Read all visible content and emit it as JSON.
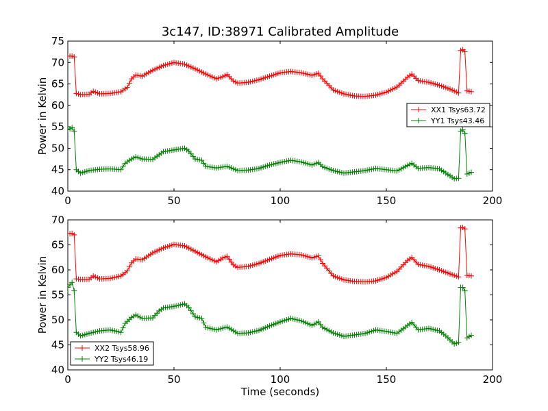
{
  "title": "3c147, ID:38971 Calibrated Amplitude",
  "xlabel": "Time (seconds)",
  "chart_data": [
    {
      "type": "line",
      "title": "3c147, ID:38971 Calibrated Amplitude",
      "xlabel": "",
      "ylabel": "Power in Kelvin",
      "xlim": [
        0,
        200
      ],
      "ylim": [
        40,
        75
      ],
      "xticks": [
        "0",
        "50",
        "100",
        "150",
        "200"
      ],
      "yticks": [
        "40",
        "45",
        "50",
        "55",
        "60",
        "65",
        "70",
        "75"
      ],
      "grid": false,
      "legend_position": "right",
      "marker": "+",
      "series": [
        {
          "name": "XX1 Tsys63.72",
          "color": "#ff0000",
          "x": [
            0,
            2,
            3,
            4,
            6,
            10,
            12,
            15,
            20,
            25,
            28,
            30,
            32,
            35,
            40,
            45,
            50,
            55,
            60,
            65,
            70,
            73,
            75,
            78,
            80,
            85,
            90,
            95,
            100,
            105,
            110,
            115,
            118,
            120,
            125,
            130,
            135,
            140,
            145,
            150,
            155,
            160,
            162,
            165,
            170,
            175,
            180,
            184,
            185,
            186,
            187,
            188,
            190
          ],
          "values": [
            71.5,
            71.5,
            71.3,
            62.8,
            62.5,
            62.6,
            63.3,
            62.7,
            62.8,
            63.2,
            64.2,
            66.2,
            67.1,
            66.8,
            68.2,
            69.3,
            70.0,
            69.6,
            68.5,
            67.3,
            66.2,
            66.7,
            67.2,
            65.7,
            65.2,
            65.4,
            66.0,
            66.8,
            67.6,
            67.9,
            67.6,
            67.0,
            67.5,
            66.2,
            63.6,
            62.7,
            62.2,
            62.1,
            62.4,
            63.1,
            64.3,
            66.6,
            67.3,
            65.8,
            65.4,
            64.7,
            63.8,
            62.9,
            72.8,
            73.0,
            72.5,
            63.4,
            63.2
          ]
        },
        {
          "name": "YY1 Tsys43.46",
          "color": "#008000",
          "x": [
            0,
            2,
            3,
            4,
            6,
            10,
            15,
            20,
            25,
            27,
            30,
            32,
            35,
            40,
            43,
            45,
            50,
            55,
            57,
            60,
            63,
            65,
            70,
            75,
            80,
            85,
            90,
            95,
            100,
            105,
            110,
            115,
            118,
            120,
            125,
            130,
            135,
            140,
            145,
            150,
            155,
            160,
            162,
            165,
            170,
            175,
            178,
            182,
            184,
            185,
            186,
            187,
            188,
            190
          ],
          "values": [
            54.3,
            54.8,
            54.0,
            45.0,
            44.2,
            44.8,
            45.1,
            45.2,
            45.0,
            46.5,
            47.5,
            48.0,
            47.5,
            47.4,
            48.5,
            49.2,
            49.6,
            50.0,
            49.3,
            47.5,
            47.2,
            45.8,
            45.4,
            45.8,
            44.8,
            44.9,
            45.3,
            46.1,
            46.7,
            47.2,
            46.8,
            46.1,
            46.7,
            45.7,
            44.8,
            44.2,
            44.5,
            44.8,
            45.3,
            45.0,
            44.7,
            46.0,
            46.5,
            45.3,
            45.5,
            45.2,
            44.2,
            42.9,
            43.0,
            54.0,
            54.3,
            53.5,
            44.0,
            44.4
          ]
        }
      ]
    },
    {
      "type": "line",
      "title": "",
      "xlabel": "Time (seconds)",
      "ylabel": "Power in Kelvin",
      "xlim": [
        0,
        200
      ],
      "ylim": [
        40,
        70
      ],
      "xticks": [
        "0",
        "50",
        "100",
        "150",
        "200"
      ],
      "yticks": [
        "40",
        "45",
        "50",
        "55",
        "60",
        "65",
        "70"
      ],
      "grid": false,
      "legend_position": "lower left",
      "marker": "+",
      "series": [
        {
          "name": "XX2 Tsys58.96",
          "color": "#ff0000",
          "x": [
            0,
            2,
            3,
            4,
            6,
            10,
            12,
            15,
            20,
            25,
            28,
            30,
            32,
            35,
            40,
            45,
            50,
            55,
            60,
            65,
            70,
            73,
            75,
            78,
            80,
            85,
            90,
            95,
            100,
            105,
            110,
            115,
            118,
            120,
            125,
            130,
            135,
            140,
            145,
            150,
            155,
            160,
            162,
            165,
            170,
            175,
            180,
            184,
            185,
            186,
            187,
            188,
            190
          ],
          "values": [
            67.2,
            67.3,
            67.0,
            58.2,
            58.1,
            58.1,
            58.8,
            58.2,
            58.3,
            58.8,
            59.8,
            61.4,
            62.2,
            62.0,
            63.4,
            64.4,
            65.1,
            64.8,
            63.7,
            62.6,
            61.6,
            62.4,
            62.7,
            61.0,
            60.5,
            60.7,
            61.3,
            62.1,
            62.9,
            63.2,
            63.0,
            62.4,
            62.8,
            61.3,
            58.8,
            58.0,
            57.7,
            57.6,
            57.8,
            58.5,
            59.7,
            61.9,
            62.5,
            61.1,
            60.7,
            60.0,
            59.2,
            58.6,
            68.4,
            68.5,
            68.2,
            58.9,
            58.8
          ]
        },
        {
          "name": "YY2 Tsys46.19",
          "color": "#008000",
          "x": [
            0,
            2,
            3,
            4,
            6,
            10,
            15,
            20,
            25,
            27,
            30,
            32,
            35,
            40,
            43,
            45,
            50,
            55,
            57,
            60,
            63,
            65,
            70,
            75,
            80,
            85,
            90,
            95,
            100,
            105,
            110,
            115,
            118,
            120,
            125,
            130,
            135,
            140,
            145,
            150,
            155,
            160,
            162,
            165,
            170,
            175,
            178,
            182,
            184,
            185,
            186,
            187,
            188,
            190
          ],
          "values": [
            56.5,
            57.5,
            55.8,
            47.5,
            46.8,
            47.3,
            47.8,
            48.0,
            47.5,
            49.3,
            50.5,
            51.0,
            50.3,
            50.4,
            51.8,
            52.4,
            52.7,
            53.2,
            52.5,
            50.6,
            50.3,
            48.5,
            48.0,
            48.6,
            47.3,
            47.4,
            47.9,
            48.8,
            49.6,
            50.3,
            49.8,
            48.9,
            49.6,
            48.5,
            47.4,
            46.7,
            47.0,
            47.3,
            48.0,
            47.7,
            47.3,
            48.9,
            49.5,
            48.0,
            48.3,
            47.8,
            46.8,
            45.2,
            45.5,
            56.5,
            56.5,
            55.8,
            46.4,
            46.9
          ]
        }
      ]
    }
  ]
}
